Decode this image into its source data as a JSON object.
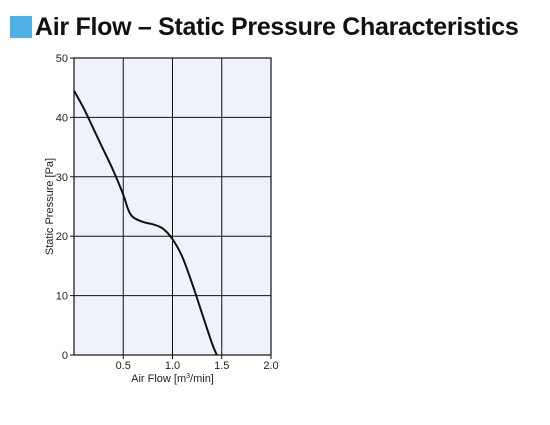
{
  "header": {
    "title": "Air Flow – Static Pressure Characteristics",
    "accent_color": "#4fb0e6"
  },
  "chart_data": {
    "type": "line",
    "title": "Air Flow – Static Pressure Characteristics",
    "xlabel_prefix": "Air Flow [m",
    "xlabel_sup": "3",
    "xlabel_suffix": "/min]",
    "ylabel": "Static Pressure [Pa]",
    "xlim": [
      0,
      2.0
    ],
    "ylim": [
      0,
      50
    ],
    "x_ticks": [
      {
        "value": 0.5,
        "label": "0.5"
      },
      {
        "value": 1.0,
        "label": "1.0"
      },
      {
        "value": 1.5,
        "label": "1.5"
      },
      {
        "value": 2.0,
        "label": "2.0"
      }
    ],
    "y_ticks": [
      {
        "value": 0,
        "label": "0"
      },
      {
        "value": 10,
        "label": "10"
      },
      {
        "value": 20,
        "label": "20"
      },
      {
        "value": 30,
        "label": "30"
      },
      {
        "value": 40,
        "label": "40"
      },
      {
        "value": 50,
        "label": "50"
      }
    ],
    "grid": true,
    "plot_background": "#eef3fb",
    "line_color": "#111111",
    "series": [
      {
        "x": [
          0.0,
          0.1,
          0.2,
          0.3,
          0.4,
          0.5,
          0.55,
          0.6,
          0.7,
          0.8,
          0.9,
          1.0,
          1.1,
          1.2,
          1.3,
          1.4,
          1.45
        ],
        "y": [
          44.5,
          41.5,
          38.0,
          34.5,
          31.0,
          27.0,
          24.5,
          23.2,
          22.4,
          22.0,
          21.3,
          19.5,
          16.5,
          12.0,
          7.0,
          2.0,
          0.0
        ]
      }
    ]
  }
}
